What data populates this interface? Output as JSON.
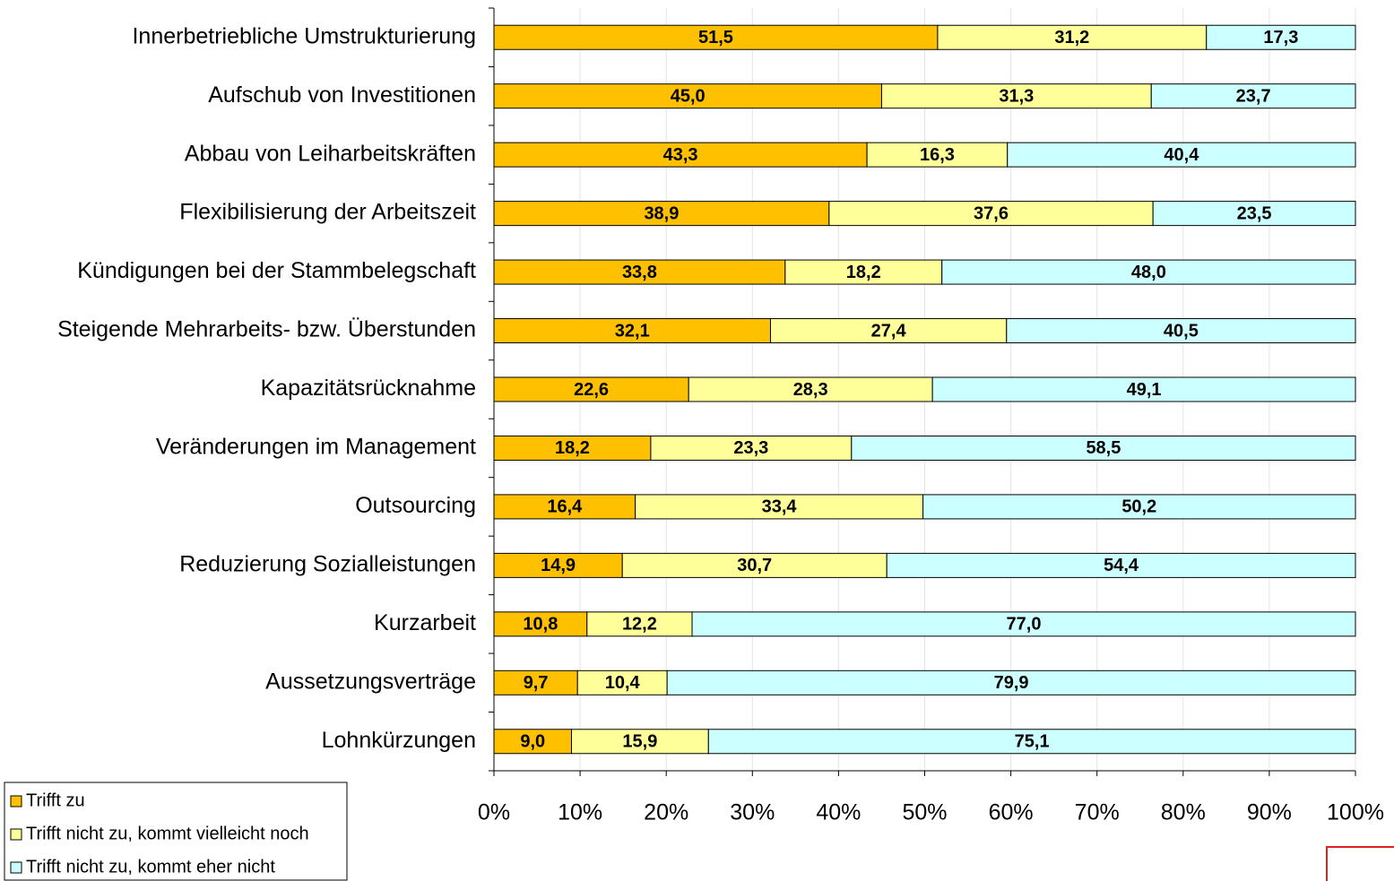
{
  "chart_data": {
    "type": "stacked_bar_horizontal",
    "categories": [
      "Innerbetriebliche Umstrukturierung",
      "Aufschub von Investitionen",
      "Abbau von Leiharbeitskräften",
      "Flexibilisierung der Arbeitszeit",
      "Kündigungen bei der Stammbelegschaft",
      "Steigende Mehrarbeits- bzw. Überstunden",
      "Kapazitätsrücknahme",
      "Veränderungen im Management",
      "Outsourcing",
      "Reduzierung Sozialleistungen",
      "Kurzarbeit",
      "Aussetzungsverträge",
      "Lohnkürzungen"
    ],
    "series": [
      {
        "name": "Trifft zu",
        "color": "#ffc000",
        "values": [
          51.5,
          45.0,
          43.3,
          38.9,
          33.8,
          32.1,
          22.6,
          18.2,
          16.4,
          14.9,
          10.8,
          9.7,
          9.0
        ],
        "value_labels": [
          "51,5",
          "45,0",
          "43,3",
          "38,9",
          "33,8",
          "32,1",
          "22,6",
          "18,2",
          "16,4",
          "14,9",
          "10,8",
          "9,7",
          "9,0"
        ]
      },
      {
        "name": "Trifft nicht zu, kommt vielleicht noch",
        "color": "#ffff99",
        "values": [
          31.2,
          31.3,
          16.3,
          37.6,
          18.2,
          27.4,
          28.3,
          23.3,
          33.4,
          30.7,
          12.2,
          10.4,
          15.9
        ],
        "value_labels": [
          "31,2",
          "31,3",
          "16,3",
          "37,6",
          "18,2",
          "27,4",
          "28,3",
          "23,3",
          "33,4",
          "30,7",
          "12,2",
          "10,4",
          "15,9"
        ]
      },
      {
        "name": "Trifft nicht zu, kommt eher nicht",
        "color": "#ccffff",
        "values": [
          17.3,
          23.7,
          40.4,
          23.5,
          48.0,
          40.5,
          49.1,
          58.5,
          50.2,
          54.4,
          77.0,
          79.9,
          75.1
        ],
        "value_labels": [
          "17,3",
          "23,7",
          "40,4",
          "23,5",
          "48,0",
          "40,5",
          "49,1",
          "58,5",
          "50,2",
          "54,4",
          "77,0",
          "79,9",
          "75,1"
        ]
      }
    ],
    "xlim": [
      0,
      100
    ],
    "xticks": [
      {
        "value": 0,
        "label": "0%"
      },
      {
        "value": 10,
        "label": "10%"
      },
      {
        "value": 20,
        "label": "20%"
      },
      {
        "value": 30,
        "label": "30%"
      },
      {
        "value": 40,
        "label": "40%"
      },
      {
        "value": 50,
        "label": "50%"
      },
      {
        "value": 60,
        "label": "60%"
      },
      {
        "value": 70,
        "label": "70%"
      },
      {
        "value": 80,
        "label": "80%"
      },
      {
        "value": 90,
        "label": "90%"
      },
      {
        "value": 100,
        "label": "100%"
      }
    ],
    "grid": true,
    "legend": "bottom-left"
  }
}
